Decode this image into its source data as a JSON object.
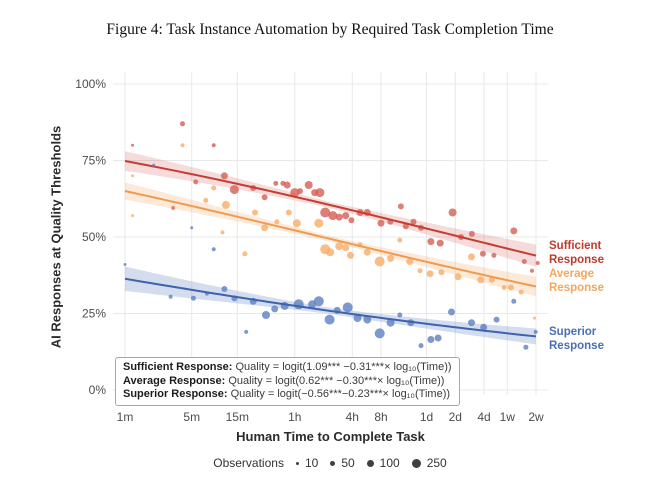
{
  "title": "Figure 4: Task Instance Automation by Required Task Completion Time",
  "equations": {
    "lines": [
      {
        "label": "Sufficient Response:",
        "formula": "Quality = logit(1.09*** −0.31***× log₁₀(Time))"
      },
      {
        "label": "Average Response:",
        "formula": "Quality = logit(0.62*** −0.30***× log₁₀(Time))"
      },
      {
        "label": "Superior Response:",
        "formula": "Quality = logit(−0.56***−0.23***× log₁₀(Time))"
      }
    ]
  },
  "chart_data": {
    "type": "scatter",
    "title": "Figure 4: Task Instance Automation by Required Task Completion Time",
    "xlabel": "Human Time to Complete Task",
    "ylabel": "AI Responses at Quality Thresholds",
    "x_scale": "log10 minutes",
    "ylim": [
      0,
      100
    ],
    "grid": "major-only",
    "style": {
      "grid_color": "#e8e8e8",
      "background": "#ffffff",
      "tick_color": "#4d4d4d"
    },
    "x_axis": {
      "label": "Human Time to Complete Task",
      "ticks": [
        {
          "label": "1m",
          "minutes": 1
        },
        {
          "label": "5m",
          "minutes": 5
        },
        {
          "label": "15m",
          "minutes": 15
        },
        {
          "label": "1h",
          "minutes": 60
        },
        {
          "label": "4h",
          "minutes": 240
        },
        {
          "label": "8h",
          "minutes": 480
        },
        {
          "label": "1d",
          "minutes": 1440
        },
        {
          "label": "2d",
          "minutes": 2880
        },
        {
          "label": "4d",
          "minutes": 5760
        },
        {
          "label": "1w",
          "minutes": 10080
        },
        {
          "label": "2w",
          "minutes": 20160
        }
      ]
    },
    "y_axis": {
      "label": "AI Responses at Quality Thresholds",
      "ticks": [
        {
          "label": "100%",
          "value": 100
        },
        {
          "label": "75%",
          "value": 75
        },
        {
          "label": "50%",
          "value": 50
        },
        {
          "label": "25%",
          "value": 25
        },
        {
          "label": "0%",
          "value": 0
        }
      ]
    },
    "size_legend": {
      "label": "Observations",
      "items": [
        {
          "label": "10",
          "d": 3
        },
        {
          "label": "50",
          "d": 5
        },
        {
          "label": "100",
          "d": 7
        },
        {
          "label": "250",
          "d": 9
        }
      ]
    },
    "series": [
      {
        "id": "sufficient",
        "name": "Sufficient Response",
        "line_color": "#c53d32",
        "point_color": "#d65f54",
        "label_color": "#c0392b",
        "band_color": "rgba(205,75,65,0.20)",
        "band": {
          "left": 3.2,
          "mid": 1.0,
          "right": 3.6
        },
        "regression": {
          "intercept": 1.09,
          "slope": -0.31,
          "sig": "***"
        },
        "points": [
          [
            1.2,
            80,
            1.5
          ],
          [
            4,
            87,
            2.5
          ],
          [
            3.2,
            59.5,
            2
          ],
          [
            5.5,
            68,
            2.5
          ],
          [
            8.5,
            80,
            2
          ],
          [
            11,
            70,
            3.5
          ],
          [
            14,
            65.5,
            4.5
          ],
          [
            22,
            66,
            3
          ],
          [
            29,
            63,
            3
          ],
          [
            38,
            67.5,
            2.5
          ],
          [
            45,
            67.5,
            2.5
          ],
          [
            50,
            67,
            3.5
          ],
          [
            60,
            64.5,
            4.5
          ],
          [
            68,
            65,
            3
          ],
          [
            84,
            67,
            4
          ],
          [
            97,
            64.5,
            3.5
          ],
          [
            110,
            64.5,
            4.5
          ],
          [
            125,
            58,
            5
          ],
          [
            150,
            57,
            4.5
          ],
          [
            175,
            56.5,
            3.5
          ],
          [
            205,
            57,
            3.5
          ],
          [
            235,
            55.5,
            3
          ],
          [
            290,
            58,
            3.5
          ],
          [
            345,
            58,
            3.5
          ],
          [
            480,
            54.5,
            3.5
          ],
          [
            600,
            55,
            3
          ],
          [
            775,
            60,
            3
          ],
          [
            875,
            53.5,
            3
          ],
          [
            1050,
            55,
            3
          ],
          [
            1260,
            53,
            3
          ],
          [
            1600,
            48.5,
            3.5
          ],
          [
            2000,
            48,
            3.5
          ],
          [
            2700,
            58,
            4
          ],
          [
            3300,
            50,
            3
          ],
          [
            4300,
            51,
            3
          ],
          [
            5600,
            44.5,
            3
          ],
          [
            7300,
            44,
            2.5
          ],
          [
            11800,
            52,
            3.5
          ],
          [
            15200,
            42,
            2.5
          ],
          [
            18300,
            39,
            2
          ],
          [
            21000,
            41.5,
            2
          ]
        ]
      },
      {
        "id": "average",
        "name": "Average Response",
        "line_color": "#f09a50",
        "point_color": "#f7ad68",
        "label_color": "#f5a55e",
        "band_color": "rgba(243,166,95,0.25)",
        "band": {
          "left": 2.8,
          "mid": 0.9,
          "right": 3.2
        },
        "regression": {
          "intercept": 0.62,
          "slope": -0.3,
          "sig": "***"
        },
        "points": [
          [
            1.2,
            70,
            1.5
          ],
          [
            1.2,
            57,
            1.5
          ],
          [
            4,
            80,
            2
          ],
          [
            7,
            62,
            2.5
          ],
          [
            8.5,
            66,
            2.5
          ],
          [
            11.4,
            60.5,
            4
          ],
          [
            10.5,
            51.5,
            2
          ],
          [
            18,
            44.5,
            2.5
          ],
          [
            23,
            58,
            3
          ],
          [
            29,
            53,
            3.5
          ],
          [
            39,
            55,
            2.5
          ],
          [
            52,
            58,
            3
          ],
          [
            63,
            54.5,
            4
          ],
          [
            107,
            54.5,
            4.5
          ],
          [
            125,
            46,
            5
          ],
          [
            141,
            45,
            4
          ],
          [
            175,
            47,
            4
          ],
          [
            205,
            46.5,
            3.5
          ],
          [
            230,
            44,
            3.5
          ],
          [
            290,
            47.5,
            2.5
          ],
          [
            345,
            45,
            3.5
          ],
          [
            465,
            42,
            5
          ],
          [
            605,
            43,
            3.5
          ],
          [
            755,
            49,
            2.5
          ],
          [
            960,
            42,
            3.5
          ],
          [
            1230,
            39,
            2.5
          ],
          [
            1570,
            38,
            3.5
          ],
          [
            2060,
            38.5,
            3
          ],
          [
            3080,
            37,
            3.5
          ],
          [
            4260,
            43.5,
            3.5
          ],
          [
            5330,
            36,
            3.5
          ],
          [
            6950,
            36,
            3
          ],
          [
            9350,
            33.5,
            2.5
          ],
          [
            11000,
            33.5,
            3
          ],
          [
            14100,
            32,
            2.5
          ],
          [
            19400,
            23.5,
            1.5
          ]
        ]
      },
      {
        "id": "superior",
        "name": "Superior Response",
        "line_color": "#3d63ad",
        "point_color": "#5c7fc0",
        "label_color": "#4a6fb5",
        "band_color": "rgba(100,132,192,0.28)",
        "band": {
          "left": 4.0,
          "mid": 1.0,
          "right": 2.6
        },
        "regression": {
          "intercept": -0.56,
          "slope": -0.23,
          "sig": "***"
        },
        "points": [
          [
            1,
            41,
            1.5
          ],
          [
            2,
            73.5,
            1.5
          ],
          [
            5,
            53,
            1.5
          ],
          [
            8.5,
            46,
            2
          ],
          [
            3,
            30.5,
            2
          ],
          [
            5.2,
            30,
            2.5
          ],
          [
            7.2,
            31.5,
            2
          ],
          [
            11,
            33,
            3
          ],
          [
            14,
            30,
            3
          ],
          [
            18.6,
            19,
            2
          ],
          [
            22,
            29,
            3.5
          ],
          [
            30,
            24.5,
            4
          ],
          [
            37,
            26.5,
            3.5
          ],
          [
            47,
            27.5,
            4
          ],
          [
            66,
            28,
            5
          ],
          [
            91,
            28,
            4
          ],
          [
            107,
            29,
            5
          ],
          [
            139,
            23,
            5
          ],
          [
            167,
            26,
            3.5
          ],
          [
            215,
            27,
            5
          ],
          [
            272,
            23.5,
            4
          ],
          [
            345,
            23,
            4
          ],
          [
            465,
            18.5,
            5
          ],
          [
            605,
            22,
            4
          ],
          [
            755,
            24.5,
            2.5
          ],
          [
            985,
            22,
            3.5
          ],
          [
            1260,
            14.5,
            2.5
          ],
          [
            1600,
            16.5,
            3.5
          ],
          [
            1900,
            17,
            3.5
          ],
          [
            2630,
            25.5,
            3.5
          ],
          [
            4260,
            22,
            3.5
          ],
          [
            5700,
            20.5,
            3.5
          ],
          [
            7800,
            23,
            3
          ],
          [
            11800,
            29,
            2.5
          ],
          [
            15800,
            14,
            2.5
          ],
          [
            20000,
            19,
            2
          ]
        ]
      }
    ]
  }
}
